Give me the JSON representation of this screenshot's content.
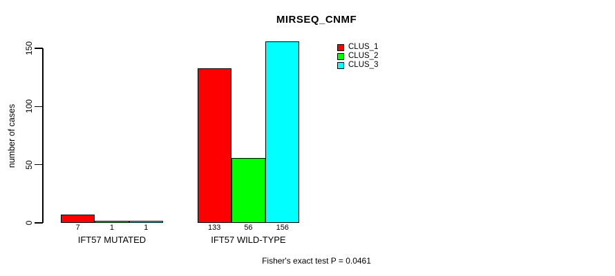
{
  "chart_data": {
    "type": "bar",
    "title": "MIRSEQ_CNMF",
    "ylabel": "number of cases",
    "xlabel": "",
    "categories": [
      "IFT57 MUTATED",
      "IFT57 WILD-TYPE"
    ],
    "series": [
      {
        "name": "CLUS_1",
        "color": "#ff0000",
        "values": [
          7,
          133
        ]
      },
      {
        "name": "CLUS_2",
        "color": "#00ff00",
        "values": [
          1,
          56
        ]
      },
      {
        "name": "CLUS_3",
        "color": "#00ffff",
        "values": [
          1,
          156
        ]
      }
    ],
    "yticks": [
      0,
      50,
      100,
      150
    ],
    "ylim": [
      0,
      150
    ],
    "grid": false,
    "bar_value_labels_shown": true,
    "legend_position": "top-right",
    "legend_entries": [
      "CLUS_1",
      "CLUS_2",
      "CLUS_3"
    ],
    "annotation": "Fisher's exact test P = 0.0461"
  },
  "colors": {
    "background": "#ffffff",
    "axis": "#000000",
    "text": "#000000",
    "clus_1": "#ff0000",
    "clus_2": "#00ff00",
    "clus_3": "#00ffff"
  }
}
